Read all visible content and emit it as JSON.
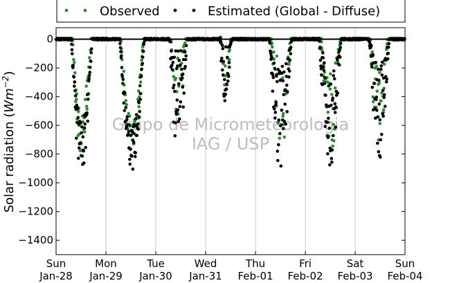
{
  "chart_data": {
    "type": "scatter",
    "title": "",
    "xlabel": "",
    "ylabel_prefix": "Solar radiation (",
    "ylabel_unit_symbol": "Wm",
    "ylabel_unit_exp": "−2",
    "ylabel_suffix": ")",
    "ylim": [
      -1500,
      80
    ],
    "xlim_days": [
      0,
      7
    ],
    "yticks": [
      0,
      -200,
      -400,
      -600,
      -800,
      -1000,
      -1200,
      -1400
    ],
    "xticks": [
      {
        "day": 0,
        "weekday": "Sun",
        "date": "Jan-28"
      },
      {
        "day": 1,
        "weekday": "Mon",
        "date": "Jan-29"
      },
      {
        "day": 2,
        "weekday": "Tue",
        "date": "Jan-30"
      },
      {
        "day": 3,
        "weekday": "Wed",
        "date": "Jan-31"
      },
      {
        "day": 4,
        "weekday": "Thu",
        "date": "Feb-01"
      },
      {
        "day": 5,
        "weekday": "Fri",
        "date": "Feb-02"
      },
      {
        "day": 6,
        "weekday": "Sat",
        "date": "Feb-03"
      },
      {
        "day": 7,
        "weekday": "Sun",
        "date": "Feb-04"
      }
    ],
    "grid": "vertical",
    "legend_position": "top",
    "watermark": [
      "Grupo de Micrometeorologia",
      "IAG / USP"
    ],
    "series": [
      {
        "name": "Observed",
        "color": "#2e8b2e",
        "day_profiles": [
          {
            "start": 0.33,
            "end": 0.7,
            "peak": 870,
            "noise": 0.45
          },
          {
            "start": 1.3,
            "end": 1.75,
            "peak": 860,
            "noise": 0.35
          },
          {
            "start": 2.3,
            "end": 2.6,
            "peak": 640,
            "noise": 0.85
          },
          {
            "start": 3.3,
            "end": 3.5,
            "peak": 380,
            "noise": 0.9
          },
          {
            "start": 4.32,
            "end": 4.7,
            "peak": 830,
            "noise": 0.8
          },
          {
            "start": 5.32,
            "end": 5.7,
            "peak": 860,
            "noise": 0.75
          },
          {
            "start": 6.3,
            "end": 6.65,
            "peak": 820,
            "noise": 0.8
          }
        ]
      },
      {
        "name": "Estimated (Global - Diffuse)",
        "color": "#000000",
        "day_profiles": [
          {
            "start": 0.3,
            "end": 0.72,
            "peak": 950,
            "noise": 0.4
          },
          {
            "start": 1.28,
            "end": 1.77,
            "peak": 920,
            "noise": 0.35
          },
          {
            "start": 2.28,
            "end": 2.62,
            "peak": 870,
            "noise": 0.9
          },
          {
            "start": 3.28,
            "end": 3.52,
            "peak": 430,
            "noise": 0.85
          },
          {
            "start": 4.28,
            "end": 4.72,
            "peak": 920,
            "noise": 0.8
          },
          {
            "start": 5.28,
            "end": 5.72,
            "peak": 910,
            "noise": 0.75
          },
          {
            "start": 6.28,
            "end": 6.68,
            "peak": 860,
            "noise": 0.8
          }
        ]
      }
    ]
  }
}
